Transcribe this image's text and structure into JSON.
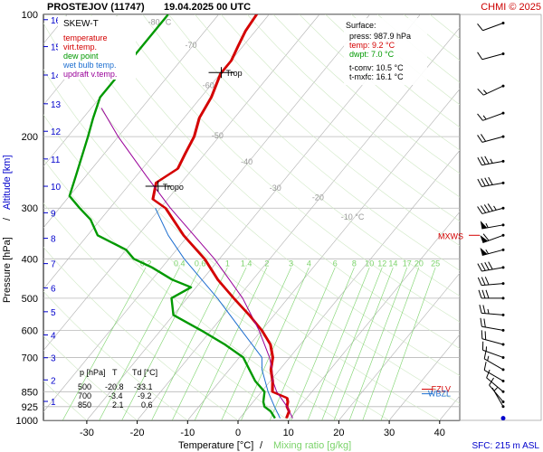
{
  "header": {
    "station": "PROSTEJOV (11747)",
    "time": "19.04.2025 00 UTC",
    "credit": "CHMI © 2025"
  },
  "colors": {
    "temperature": "#d40000",
    "dewpoint": "#009900",
    "wetbulb": "#1e6fd0",
    "updraft": "#990099",
    "mixing": "#7bd36a",
    "isotherm": "#b0b0b0",
    "text_gray": "#9a9a9a",
    "altitude": "#0000cc",
    "wind": "#000000"
  },
  "chart_data": {
    "type": "line",
    "title": "SKEW-T",
    "xlabel_main": "Temperature [°C]",
    "xlabel_sep": "/",
    "xlabel_mix": "Mixing ratio [g/kg]",
    "ylabel": "Pressure [hPa]",
    "ylabel_sep": "/",
    "ylabel_alt": "Altitude [km]",
    "xlim": [
      -40,
      45
    ],
    "ylim": [
      1000,
      100
    ],
    "x_ticks": [
      -30,
      -20,
      -10,
      0,
      10,
      20,
      30,
      40
    ],
    "pressure_ticks": [
      100,
      200,
      300,
      400,
      500,
      600,
      700,
      850,
      925,
      1000
    ],
    "altitude_km": [
      {
        "km": 1,
        "p": 898
      },
      {
        "km": 2,
        "p": 795
      },
      {
        "km": 3,
        "p": 701
      },
      {
        "km": 4,
        "p": 616
      },
      {
        "km": 5,
        "p": 540
      },
      {
        "km": 6,
        "p": 472
      },
      {
        "km": 7,
        "p": 411
      },
      {
        "km": 8,
        "p": 356
      },
      {
        "km": 9,
        "p": 308
      },
      {
        "km": 10,
        "p": 265
      },
      {
        "km": 11,
        "p": 227
      },
      {
        "km": 12,
        "p": 194
      },
      {
        "km": 13,
        "p": 166
      },
      {
        "km": 14,
        "p": 141
      },
      {
        "km": 15,
        "p": 120
      },
      {
        "km": 16,
        "p": 103
      }
    ],
    "isotherm_labels": [
      {
        "t": -80,
        "label": "-80 °C",
        "p": 106
      },
      {
        "t": -70,
        "label": "-70",
        "p": 121
      },
      {
        "t": -60,
        "label": "-60",
        "p": 152
      },
      {
        "t": -50,
        "label": "-50",
        "p": 202
      },
      {
        "t": -40,
        "label": "-40",
        "p": 234
      },
      {
        "t": -30,
        "label": "-30",
        "p": 272
      },
      {
        "t": -20,
        "label": "-20",
        "p": 287
      },
      {
        "t": -10,
        "label": "-10 °C",
        "p": 320
      }
    ],
    "mixing_ratio_labels": [
      "0.2",
      "0.4",
      "0.6",
      "1",
      "1.4",
      "2",
      "3",
      "4",
      "6",
      "8",
      "10",
      "12",
      "14",
      "17",
      "20",
      "25"
    ],
    "legend": [
      {
        "label": "temperature",
        "color": "#d40000"
      },
      {
        "label": "virt.temp.",
        "color": "#d40000"
      },
      {
        "label": "dew point",
        "color": "#009900"
      },
      {
        "label": "wet bulb temp.",
        "color": "#1e6fd0"
      },
      {
        "label": "updraft v.temp.",
        "color": "#990099"
      }
    ],
    "series": [
      {
        "name": "temperature",
        "points": [
          [
            987.9,
            9.2
          ],
          [
            950,
            8.6
          ],
          [
            925,
            7.4
          ],
          [
            900,
            6.8
          ],
          [
            880,
            6.0
          ],
          [
            850,
            2.1
          ],
          [
            800,
            0.4
          ],
          [
            750,
            -1.8
          ],
          [
            700,
            -3.4
          ],
          [
            650,
            -6.0
          ],
          [
            600,
            -10.0
          ],
          [
            550,
            -15.0
          ],
          [
            500,
            -20.8
          ],
          [
            450,
            -27.0
          ],
          [
            400,
            -33.0
          ],
          [
            350,
            -41.0
          ],
          [
            300,
            -49.0
          ],
          [
            285,
            -53.0
          ],
          [
            260,
            -55.0
          ],
          [
            240,
            -53.0
          ],
          [
            220,
            -54.0
          ],
          [
            200,
            -55.0
          ],
          [
            180,
            -57.0
          ],
          [
            160,
            -58.0
          ],
          [
            140,
            -60.0
          ],
          [
            130,
            -60.0
          ],
          [
            120,
            -61.0
          ],
          [
            110,
            -62.0
          ],
          [
            100,
            -62.5
          ]
        ]
      },
      {
        "name": "dew point",
        "points": [
          [
            987.9,
            7.0
          ],
          [
            950,
            5.0
          ],
          [
            925,
            3.0
          ],
          [
            900,
            2.0
          ],
          [
            850,
            0.6
          ],
          [
            800,
            -3.0
          ],
          [
            750,
            -6.0
          ],
          [
            700,
            -9.2
          ],
          [
            650,
            -15.0
          ],
          [
            600,
            -22.0
          ],
          [
            550,
            -30.0
          ],
          [
            500,
            -33.1
          ],
          [
            470,
            -31.0
          ],
          [
            450,
            -36.0
          ],
          [
            420,
            -42.0
          ],
          [
            400,
            -47.0
          ],
          [
            380,
            -50.0
          ],
          [
            350,
            -58.0
          ],
          [
            320,
            -62.0
          ],
          [
            300,
            -66.0
          ],
          [
            280,
            -70.0
          ],
          [
            250,
            -72.0
          ],
          [
            200,
            -76.0
          ],
          [
            180,
            -78.0
          ],
          [
            160,
            -80.0
          ],
          [
            140,
            -80.0
          ],
          [
            120,
            -80.0
          ],
          [
            100,
            -80.0
          ]
        ]
      },
      {
        "name": "wet bulb temp.",
        "points": [
          [
            987.9,
            8.0
          ],
          [
            925,
            5.0
          ],
          [
            850,
            1.3
          ],
          [
            750,
            -3.5
          ],
          [
            700,
            -5.5
          ],
          [
            600,
            -14.0
          ],
          [
            500,
            -24.0
          ],
          [
            400,
            -37.0
          ],
          [
            350,
            -44.0
          ],
          [
            300,
            -51.0
          ]
        ]
      },
      {
        "name": "updraft v.temp.",
        "points": [
          [
            987.9,
            10.5
          ],
          [
            925,
            7.5
          ],
          [
            850,
            3.0
          ],
          [
            800,
            0.5
          ],
          [
            750,
            -1.5
          ],
          [
            700,
            -4.0
          ],
          [
            600,
            -10.5
          ],
          [
            500,
            -19.0
          ],
          [
            400,
            -31.0
          ],
          [
            300,
            -48.0
          ],
          [
            250,
            -58.0
          ],
          [
            200,
            -70.0
          ],
          [
            170,
            -78.0
          ]
        ]
      }
    ],
    "markers": [
      {
        "label": "Tropo",
        "p": 265
      },
      {
        "label": "Trop",
        "p": 139
      },
      {
        "label": "MXWS",
        "p": 350
      },
      {
        "label": "FZLV",
        "p": 838
      },
      {
        "label": "WBZL",
        "p": 860
      }
    ],
    "surface_info": [
      "Surface:",
      "press: 987.9 hPa",
      "temp: 9.2 °C",
      "dwpt: 7.0 °C",
      "t-conv: 10.5 °C",
      "t-mxfc: 16.1 °C"
    ],
    "table": {
      "headers": [
        "p [hPa]",
        "T",
        "Td [°C]"
      ],
      "rows": [
        [
          "500",
          "-20.8",
          "-33.1"
        ],
        [
          "700",
          "-3.4",
          "-9.2"
        ],
        [
          "850",
          "2.1",
          "0.6"
        ]
      ]
    },
    "sfc_label": "SFC: 215 m ASL",
    "wind_barbs": [
      {
        "p": 105,
        "dir": 250,
        "kt": 10
      },
      {
        "p": 125,
        "dir": 255,
        "kt": 10
      },
      {
        "p": 150,
        "dir": 245,
        "kt": 15
      },
      {
        "p": 175,
        "dir": 250,
        "kt": 15
      },
      {
        "p": 200,
        "dir": 255,
        "kt": 20
      },
      {
        "p": 230,
        "dir": 260,
        "kt": 35
      },
      {
        "p": 260,
        "dir": 260,
        "kt": 40
      },
      {
        "p": 300,
        "dir": 255,
        "kt": 45
      },
      {
        "p": 330,
        "dir": 260,
        "kt": 55
      },
      {
        "p": 350,
        "dir": 250,
        "kt": 60
      },
      {
        "p": 380,
        "dir": 255,
        "kt": 55
      },
      {
        "p": 420,
        "dir": 260,
        "kt": 40
      },
      {
        "p": 460,
        "dir": 265,
        "kt": 30
      },
      {
        "p": 500,
        "dir": 270,
        "kt": 30
      },
      {
        "p": 550,
        "dir": 275,
        "kt": 25
      },
      {
        "p": 600,
        "dir": 280,
        "kt": 20
      },
      {
        "p": 650,
        "dir": 285,
        "kt": 20
      },
      {
        "p": 700,
        "dir": 290,
        "kt": 15
      },
      {
        "p": 750,
        "dir": 300,
        "kt": 15
      },
      {
        "p": 800,
        "dir": 300,
        "kt": 10
      },
      {
        "p": 850,
        "dir": 310,
        "kt": 10
      },
      {
        "p": 900,
        "dir": 320,
        "kt": 10
      },
      {
        "p": 925,
        "dir": 330,
        "kt": 5
      },
      {
        "p": 987.9,
        "dir": 0,
        "kt": 0
      }
    ]
  }
}
